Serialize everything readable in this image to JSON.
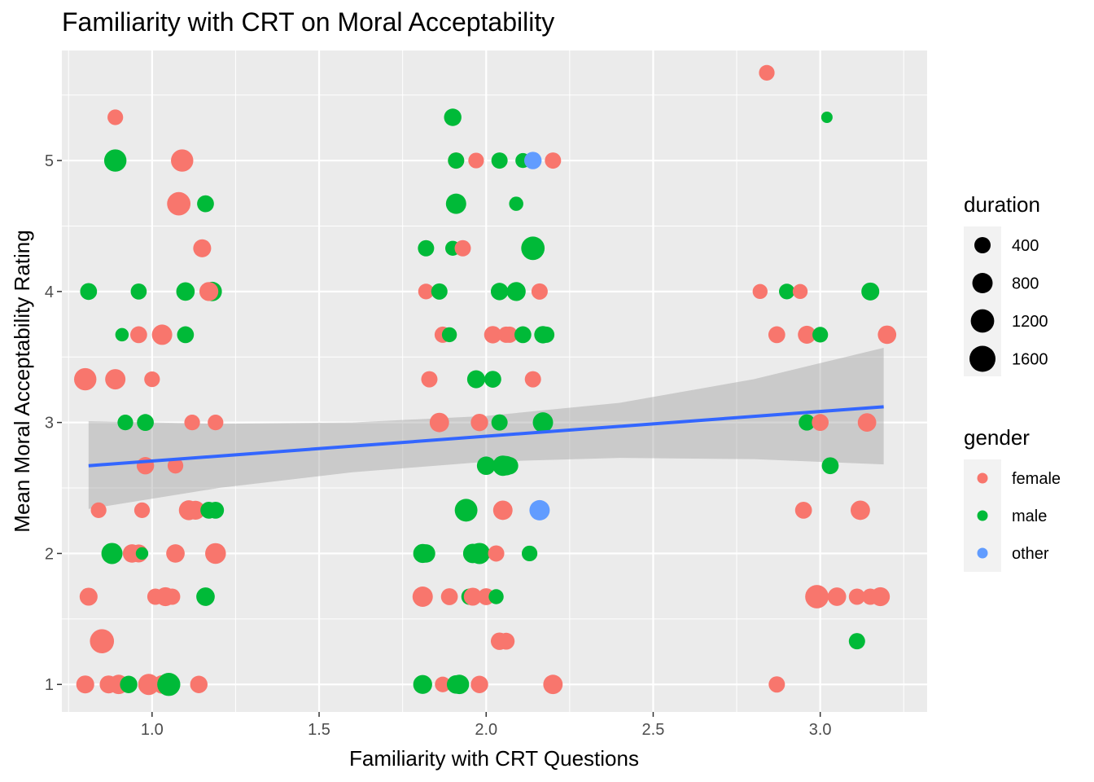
{
  "chart_data": {
    "type": "scatter",
    "title": "Familiarity with CRT on Moral Acceptability",
    "xlabel": "Familiarity with CRT Questions",
    "ylabel": "Mean Moral Acceptability Rating",
    "xlim": [
      0.73,
      3.32
    ],
    "ylim": [
      0.79,
      5.84
    ],
    "x_ticks": [
      1.0,
      1.5,
      2.0,
      2.5,
      3.0
    ],
    "x_tick_labels": [
      "1.0",
      "1.5",
      "2.0",
      "2.5",
      "3.0"
    ],
    "y_ticks": [
      1,
      2,
      3,
      4,
      5
    ],
    "y_tick_labels": [
      "1",
      "2",
      "3",
      "4",
      "5"
    ],
    "grid": true,
    "legend_position": "right",
    "size_legend": {
      "title": "duration",
      "entries": [
        {
          "label": "400",
          "value": 400
        },
        {
          "label": "800",
          "value": 800
        },
        {
          "label": "1200",
          "value": 1200
        },
        {
          "label": "1600",
          "value": 1600
        }
      ]
    },
    "color_legend": {
      "title": "gender",
      "entries": [
        {
          "label": "female",
          "key": "female",
          "color": "#F8766D"
        },
        {
          "label": "male",
          "key": "male",
          "color": "#00BA38"
        },
        {
          "label": "other",
          "key": "other",
          "color": "#619CFF"
        }
      ]
    },
    "trend": {
      "x": [
        0.81,
        3.19
      ],
      "y": [
        2.67,
        3.12
      ],
      "ci_lower": [
        [
          0.81,
          2.34
        ],
        [
          1.2,
          2.5
        ],
        [
          1.6,
          2.62
        ],
        [
          2.0,
          2.7
        ],
        [
          2.4,
          2.73
        ],
        [
          2.8,
          2.72
        ],
        [
          3.19,
          2.68
        ]
      ],
      "ci_upper": [
        [
          0.81,
          3.01
        ],
        [
          1.2,
          2.99
        ],
        [
          1.6,
          3.0
        ],
        [
          2.0,
          3.05
        ],
        [
          2.4,
          3.15
        ],
        [
          2.8,
          3.33
        ],
        [
          3.19,
          3.57
        ]
      ],
      "line_color": "#3366FF",
      "band_color": "#999999"
    },
    "points": [
      {
        "x": 0.89,
        "y": 5.33,
        "gender": "female",
        "duration": 350
      },
      {
        "x": 0.89,
        "y": 5.0,
        "gender": "male",
        "duration": 1050
      },
      {
        "x": 1.09,
        "y": 5.0,
        "gender": "female",
        "duration": 1050
      },
      {
        "x": 1.08,
        "y": 4.67,
        "gender": "female",
        "duration": 1200
      },
      {
        "x": 1.16,
        "y": 4.67,
        "gender": "male",
        "duration": 450
      },
      {
        "x": 1.15,
        "y": 4.33,
        "gender": "female",
        "duration": 550
      },
      {
        "x": 0.81,
        "y": 4.0,
        "gender": "male",
        "duration": 450
      },
      {
        "x": 0.96,
        "y": 4.0,
        "gender": "male",
        "duration": 380
      },
      {
        "x": 1.1,
        "y": 4.0,
        "gender": "male",
        "duration": 600
      },
      {
        "x": 1.18,
        "y": 4.0,
        "gender": "male",
        "duration": 700
      },
      {
        "x": 1.17,
        "y": 4.0,
        "gender": "female",
        "duration": 650
      },
      {
        "x": 0.91,
        "y": 3.67,
        "gender": "male",
        "duration": 200
      },
      {
        "x": 0.96,
        "y": 3.67,
        "gender": "female",
        "duration": 450
      },
      {
        "x": 1.03,
        "y": 3.67,
        "gender": "female",
        "duration": 800
      },
      {
        "x": 1.1,
        "y": 3.67,
        "gender": "male",
        "duration": 450
      },
      {
        "x": 0.8,
        "y": 3.33,
        "gender": "female",
        "duration": 1050
      },
      {
        "x": 0.89,
        "y": 3.33,
        "gender": "female",
        "duration": 800
      },
      {
        "x": 1.0,
        "y": 3.33,
        "gender": "female",
        "duration": 350
      },
      {
        "x": 0.92,
        "y": 3.0,
        "gender": "male",
        "duration": 350
      },
      {
        "x": 0.98,
        "y": 3.0,
        "gender": "male",
        "duration": 450
      },
      {
        "x": 1.12,
        "y": 3.0,
        "gender": "female",
        "duration": 350
      },
      {
        "x": 1.19,
        "y": 3.0,
        "gender": "female",
        "duration": 350
      },
      {
        "x": 0.98,
        "y": 2.67,
        "gender": "female",
        "duration": 500
      },
      {
        "x": 1.07,
        "y": 2.67,
        "gender": "female",
        "duration": 350
      },
      {
        "x": 0.84,
        "y": 2.33,
        "gender": "female",
        "duration": 350
      },
      {
        "x": 0.97,
        "y": 2.33,
        "gender": "female",
        "duration": 350
      },
      {
        "x": 1.11,
        "y": 2.33,
        "gender": "female",
        "duration": 750
      },
      {
        "x": 1.13,
        "y": 2.33,
        "gender": "female",
        "duration": 650
      },
      {
        "x": 1.17,
        "y": 2.33,
        "gender": "male",
        "duration": 450
      },
      {
        "x": 1.19,
        "y": 2.33,
        "gender": "male",
        "duration": 450
      },
      {
        "x": 0.88,
        "y": 2.0,
        "gender": "male",
        "duration": 900
      },
      {
        "x": 0.94,
        "y": 2.0,
        "gender": "female",
        "duration": 600
      },
      {
        "x": 0.96,
        "y": 2.0,
        "gender": "female",
        "duration": 550
      },
      {
        "x": 0.97,
        "y": 2.0,
        "gender": "male",
        "duration": 150
      },
      {
        "x": 1.07,
        "y": 2.0,
        "gender": "female",
        "duration": 600
      },
      {
        "x": 1.19,
        "y": 2.0,
        "gender": "female",
        "duration": 850
      },
      {
        "x": 0.81,
        "y": 1.67,
        "gender": "female",
        "duration": 550
      },
      {
        "x": 1.01,
        "y": 1.67,
        "gender": "female",
        "duration": 400
      },
      {
        "x": 1.04,
        "y": 1.67,
        "gender": "female",
        "duration": 650
      },
      {
        "x": 1.06,
        "y": 1.67,
        "gender": "female",
        "duration": 400
      },
      {
        "x": 1.16,
        "y": 1.67,
        "gender": "male",
        "duration": 600
      },
      {
        "x": 0.85,
        "y": 1.33,
        "gender": "female",
        "duration": 1300
      },
      {
        "x": 0.8,
        "y": 1.0,
        "gender": "female",
        "duration": 550
      },
      {
        "x": 0.87,
        "y": 1.0,
        "gender": "female",
        "duration": 550
      },
      {
        "x": 0.9,
        "y": 1.0,
        "gender": "female",
        "duration": 700
      },
      {
        "x": 0.93,
        "y": 1.0,
        "gender": "male",
        "duration": 500
      },
      {
        "x": 0.99,
        "y": 1.0,
        "gender": "female",
        "duration": 900
      },
      {
        "x": 1.03,
        "y": 1.0,
        "gender": "female",
        "duration": 600
      },
      {
        "x": 1.05,
        "y": 1.0,
        "gender": "male",
        "duration": 1150
      },
      {
        "x": 1.14,
        "y": 1.0,
        "gender": "female",
        "duration": 500
      },
      {
        "x": 1.9,
        "y": 5.33,
        "gender": "male",
        "duration": 500
      },
      {
        "x": 1.91,
        "y": 5.0,
        "gender": "female",
        "duration": 400
      },
      {
        "x": 1.91,
        "y": 5.0,
        "gender": "male",
        "duration": 400
      },
      {
        "x": 1.97,
        "y": 5.0,
        "gender": "female",
        "duration": 350
      },
      {
        "x": 2.04,
        "y": 5.0,
        "gender": "male",
        "duration": 400
      },
      {
        "x": 2.11,
        "y": 5.0,
        "gender": "male",
        "duration": 300
      },
      {
        "x": 2.14,
        "y": 5.0,
        "gender": "other",
        "duration": 500
      },
      {
        "x": 2.2,
        "y": 5.0,
        "gender": "female",
        "duration": 400
      },
      {
        "x": 1.91,
        "y": 4.67,
        "gender": "male",
        "duration": 800
      },
      {
        "x": 2.09,
        "y": 4.67,
        "gender": "male",
        "duration": 250
      },
      {
        "x": 1.82,
        "y": 4.33,
        "gender": "male",
        "duration": 400
      },
      {
        "x": 1.9,
        "y": 4.33,
        "gender": "male",
        "duration": 300
      },
      {
        "x": 1.93,
        "y": 4.33,
        "gender": "female",
        "duration": 400
      },
      {
        "x": 2.14,
        "y": 4.33,
        "gender": "male",
        "duration": 1200
      },
      {
        "x": 1.82,
        "y": 4.0,
        "gender": "female",
        "duration": 350
      },
      {
        "x": 1.86,
        "y": 4.0,
        "gender": "male",
        "duration": 400
      },
      {
        "x": 2.04,
        "y": 4.0,
        "gender": "male",
        "duration": 500
      },
      {
        "x": 2.09,
        "y": 4.0,
        "gender": "male",
        "duration": 650
      },
      {
        "x": 2.16,
        "y": 4.0,
        "gender": "female",
        "duration": 400
      },
      {
        "x": 1.87,
        "y": 3.67,
        "gender": "female",
        "duration": 400
      },
      {
        "x": 1.89,
        "y": 3.67,
        "gender": "male",
        "duration": 300
      },
      {
        "x": 2.02,
        "y": 3.67,
        "gender": "female",
        "duration": 500
      },
      {
        "x": 2.06,
        "y": 3.67,
        "gender": "female",
        "duration": 400
      },
      {
        "x": 2.07,
        "y": 3.67,
        "gender": "female",
        "duration": 400
      },
      {
        "x": 2.11,
        "y": 3.67,
        "gender": "male",
        "duration": 450
      },
      {
        "x": 2.17,
        "y": 3.67,
        "gender": "male",
        "duration": 500
      },
      {
        "x": 2.18,
        "y": 3.67,
        "gender": "male",
        "duration": 400
      },
      {
        "x": 1.83,
        "y": 3.33,
        "gender": "female",
        "duration": 400
      },
      {
        "x": 1.97,
        "y": 3.33,
        "gender": "male",
        "duration": 550
      },
      {
        "x": 2.02,
        "y": 3.33,
        "gender": "male",
        "duration": 450
      },
      {
        "x": 2.14,
        "y": 3.33,
        "gender": "female",
        "duration": 400
      },
      {
        "x": 1.86,
        "y": 3.0,
        "gender": "female",
        "duration": 700
      },
      {
        "x": 1.98,
        "y": 3.0,
        "gender": "female",
        "duration": 500
      },
      {
        "x": 2.04,
        "y": 3.0,
        "gender": "male",
        "duration": 400
      },
      {
        "x": 2.17,
        "y": 3.0,
        "gender": "male",
        "duration": 800
      },
      {
        "x": 2.0,
        "y": 2.67,
        "gender": "male",
        "duration": 600
      },
      {
        "x": 2.05,
        "y": 2.67,
        "gender": "male",
        "duration": 800
      },
      {
        "x": 2.06,
        "y": 2.67,
        "gender": "male",
        "duration": 700
      },
      {
        "x": 2.07,
        "y": 2.67,
        "gender": "male",
        "duration": 500
      },
      {
        "x": 1.94,
        "y": 2.33,
        "gender": "male",
        "duration": 1100
      },
      {
        "x": 2.05,
        "y": 2.33,
        "gender": "female",
        "duration": 700
      },
      {
        "x": 2.16,
        "y": 2.33,
        "gender": "other",
        "duration": 800
      },
      {
        "x": 1.81,
        "y": 2.0,
        "gender": "male",
        "duration": 650
      },
      {
        "x": 1.82,
        "y": 2.0,
        "gender": "male",
        "duration": 600
      },
      {
        "x": 1.96,
        "y": 2.0,
        "gender": "male",
        "duration": 700
      },
      {
        "x": 1.98,
        "y": 2.0,
        "gender": "male",
        "duration": 900
      },
      {
        "x": 2.03,
        "y": 2.0,
        "gender": "female",
        "duration": 400
      },
      {
        "x": 2.13,
        "y": 2.0,
        "gender": "male",
        "duration": 350
      },
      {
        "x": 1.81,
        "y": 1.67,
        "gender": "female",
        "duration": 800
      },
      {
        "x": 1.89,
        "y": 1.67,
        "gender": "female",
        "duration": 450
      },
      {
        "x": 1.95,
        "y": 1.67,
        "gender": "male",
        "duration": 400
      },
      {
        "x": 1.96,
        "y": 1.67,
        "gender": "female",
        "duration": 550
      },
      {
        "x": 2.0,
        "y": 1.67,
        "gender": "female",
        "duration": 450
      },
      {
        "x": 2.03,
        "y": 1.67,
        "gender": "male",
        "duration": 300
      },
      {
        "x": 2.04,
        "y": 1.33,
        "gender": "female",
        "duration": 500
      },
      {
        "x": 2.06,
        "y": 1.33,
        "gender": "female",
        "duration": 450
      },
      {
        "x": 1.81,
        "y": 1.0,
        "gender": "male",
        "duration": 650
      },
      {
        "x": 1.87,
        "y": 1.0,
        "gender": "female",
        "duration": 350
      },
      {
        "x": 1.91,
        "y": 1.0,
        "gender": "male",
        "duration": 600
      },
      {
        "x": 1.92,
        "y": 1.0,
        "gender": "male",
        "duration": 700
      },
      {
        "x": 1.98,
        "y": 1.0,
        "gender": "female",
        "duration": 500
      },
      {
        "x": 2.2,
        "y": 1.0,
        "gender": "female",
        "duration": 700
      },
      {
        "x": 2.84,
        "y": 5.67,
        "gender": "female",
        "duration": 350
      },
      {
        "x": 3.02,
        "y": 5.33,
        "gender": "male",
        "duration": 100
      },
      {
        "x": 2.82,
        "y": 4.0,
        "gender": "female",
        "duration": 300
      },
      {
        "x": 2.9,
        "y": 4.0,
        "gender": "male",
        "duration": 350
      },
      {
        "x": 2.94,
        "y": 4.0,
        "gender": "female",
        "duration": 300
      },
      {
        "x": 3.15,
        "y": 4.0,
        "gender": "male",
        "duration": 550
      },
      {
        "x": 2.87,
        "y": 3.67,
        "gender": "female",
        "duration": 450
      },
      {
        "x": 2.96,
        "y": 3.67,
        "gender": "female",
        "duration": 550
      },
      {
        "x": 3.0,
        "y": 3.67,
        "gender": "male",
        "duration": 350
      },
      {
        "x": 3.2,
        "y": 3.67,
        "gender": "female",
        "duration": 600
      },
      {
        "x": 2.96,
        "y": 3.0,
        "gender": "male",
        "duration": 400
      },
      {
        "x": 3.0,
        "y": 3.0,
        "gender": "female",
        "duration": 450
      },
      {
        "x": 3.14,
        "y": 3.0,
        "gender": "female",
        "duration": 600
      },
      {
        "x": 3.03,
        "y": 2.67,
        "gender": "male",
        "duration": 450
      },
      {
        "x": 2.95,
        "y": 2.33,
        "gender": "female",
        "duration": 450
      },
      {
        "x": 3.12,
        "y": 2.33,
        "gender": "female",
        "duration": 700
      },
      {
        "x": 2.99,
        "y": 1.67,
        "gender": "female",
        "duration": 1200
      },
      {
        "x": 3.05,
        "y": 1.67,
        "gender": "female",
        "duration": 600
      },
      {
        "x": 3.11,
        "y": 1.67,
        "gender": "female",
        "duration": 400
      },
      {
        "x": 3.15,
        "y": 1.67,
        "gender": "female",
        "duration": 400
      },
      {
        "x": 3.18,
        "y": 1.67,
        "gender": "female",
        "duration": 650
      },
      {
        "x": 3.11,
        "y": 1.33,
        "gender": "male",
        "duration": 400
      },
      {
        "x": 2.87,
        "y": 1.0,
        "gender": "female",
        "duration": 400
      }
    ]
  }
}
